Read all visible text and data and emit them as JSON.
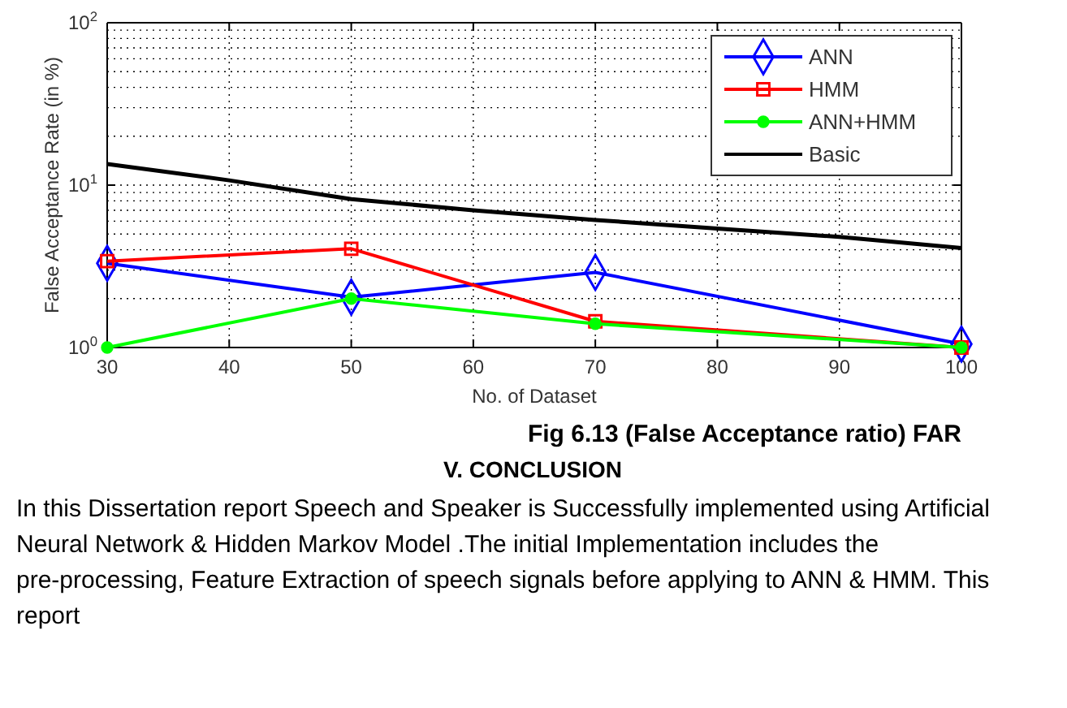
{
  "chart_data": {
    "type": "line",
    "xlabel": "No. of Dataset",
    "ylabel": "False Acceptance Rate (in %)",
    "x": [
      30,
      50,
      70,
      100
    ],
    "series": [
      {
        "name": "ANN",
        "color": "#0000ff",
        "marker": "diamond",
        "values": [
          3.3,
          2.04,
          2.9,
          1.05
        ]
      },
      {
        "name": "HMM",
        "color": "#ff0000",
        "marker": "square",
        "values": [
          3.4,
          4.06,
          1.45,
          1.0
        ]
      },
      {
        "name": "ANN+HMM",
        "color": "#00ff00",
        "marker": "circle",
        "values": [
          1.0,
          2.0,
          1.4,
          1.0
        ]
      },
      {
        "name": "Basic",
        "color": "#000000",
        "marker": "none",
        "x": [
          30,
          40,
          50,
          60,
          70,
          80,
          90,
          100
        ],
        "values": [
          13.5,
          10.7,
          8.2,
          7.0,
          6.1,
          5.4,
          4.8,
          4.1
        ]
      }
    ],
    "xlim": [
      30,
      100
    ],
    "xticks": [
      30,
      40,
      50,
      60,
      70,
      80,
      90,
      100
    ],
    "ylim": [
      1,
      100
    ],
    "yticks": [
      {
        "value": 1,
        "label": "10$^{0}$"
      },
      {
        "value": 10,
        "label": "10$^{1}$"
      },
      {
        "value": 100,
        "label": "10$^{2}$"
      }
    ],
    "log": "y",
    "grid": true,
    "legend": "top right",
    "line_style": "solid",
    "annotations": [
      "Fig 6.13 (False Acceptance ratio) FAR",
      "V.   CONCLUSION",
      "In this Dissertation report Speech and Speaker is Successfully implemented using Artificial Neural Network & Hidden Markov Model .The initial Implementation includes the pre-processing, Feature Extraction of speech signals before applying to ANN & HMM. This report"
    ]
  }
}
